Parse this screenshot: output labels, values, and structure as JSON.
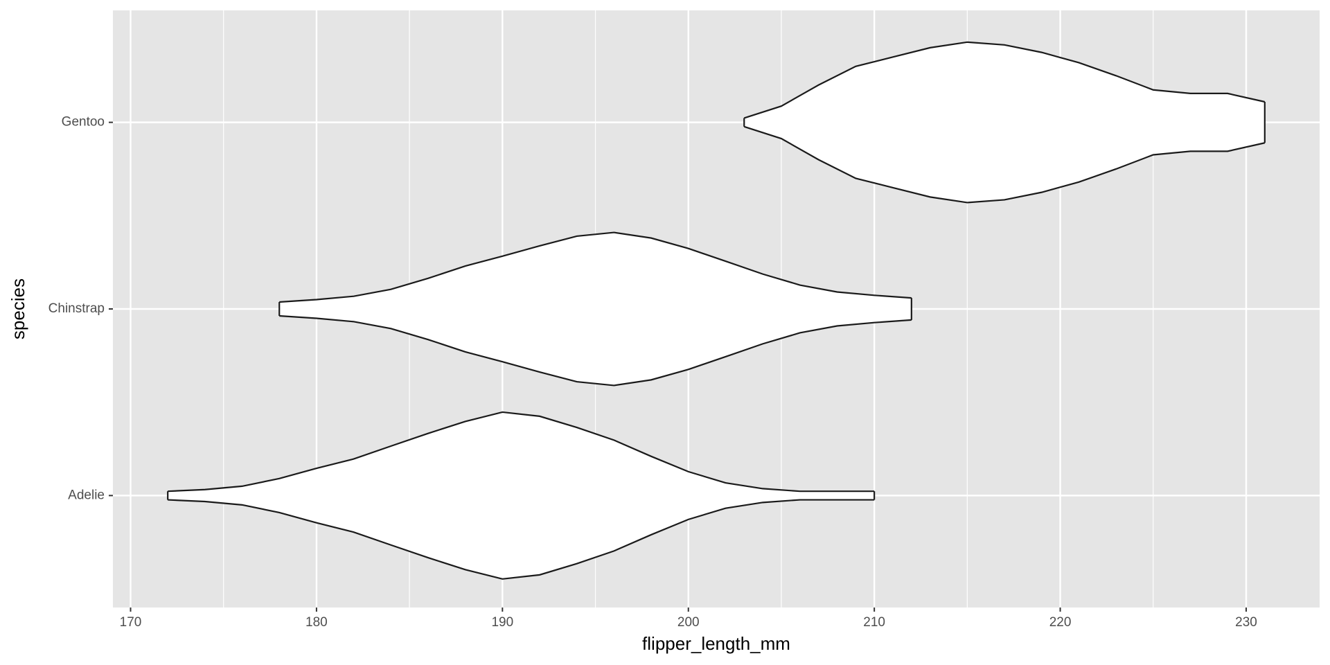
{
  "chart_data": {
    "type": "violin",
    "x_label": "flipper_length_mm",
    "y_label": "species",
    "categories": [
      "Adelie",
      "Chinstrap",
      "Gentoo"
    ],
    "violins": [
      {
        "x": [
          172,
          174,
          176,
          178,
          180,
          182,
          184,
          186,
          188,
          190,
          192,
          194,
          196,
          198,
          200,
          202,
          204,
          206,
          208,
          210
        ],
        "values": [
          0.023,
          0.032,
          0.05,
          0.091,
          0.146,
          0.196,
          0.265,
          0.333,
          0.397,
          0.447,
          0.425,
          0.365,
          0.297,
          0.21,
          0.128,
          0.068,
          0.037,
          0.023,
          0.023,
          0.023
        ]
      },
      {
        "x": [
          178,
          180,
          182,
          184,
          186,
          188,
          190,
          192,
          194,
          196,
          198,
          200,
          202,
          204,
          206,
          208,
          210,
          212
        ],
        "values": [
          0.037,
          0.05,
          0.068,
          0.105,
          0.164,
          0.23,
          0.283,
          0.338,
          0.39,
          0.41,
          0.38,
          0.324,
          0.256,
          0.187,
          0.128,
          0.091,
          0.073,
          0.059
        ]
      },
      {
        "x": [
          203,
          205,
          207,
          209,
          211,
          213,
          215,
          217,
          219,
          221,
          223,
          225,
          227,
          229,
          231
        ],
        "values": [
          0.023,
          0.087,
          0.2,
          0.3,
          0.35,
          0.4,
          0.43,
          0.415,
          0.375,
          0.32,
          0.25,
          0.174,
          0.155,
          0.155,
          0.11
        ]
      }
    ],
    "fill": "#ffffff",
    "line_color": "#1a1a1a",
    "panel_color": "#e5e5e5",
    "grid_color": "#ffffff",
    "xlim": [
      169.05,
      233.95
    ],
    "xticks": [
      170,
      180,
      190,
      200,
      210,
      220,
      230
    ],
    "ylim": [
      0.4,
      3.6
    ],
    "grid": true
  }
}
